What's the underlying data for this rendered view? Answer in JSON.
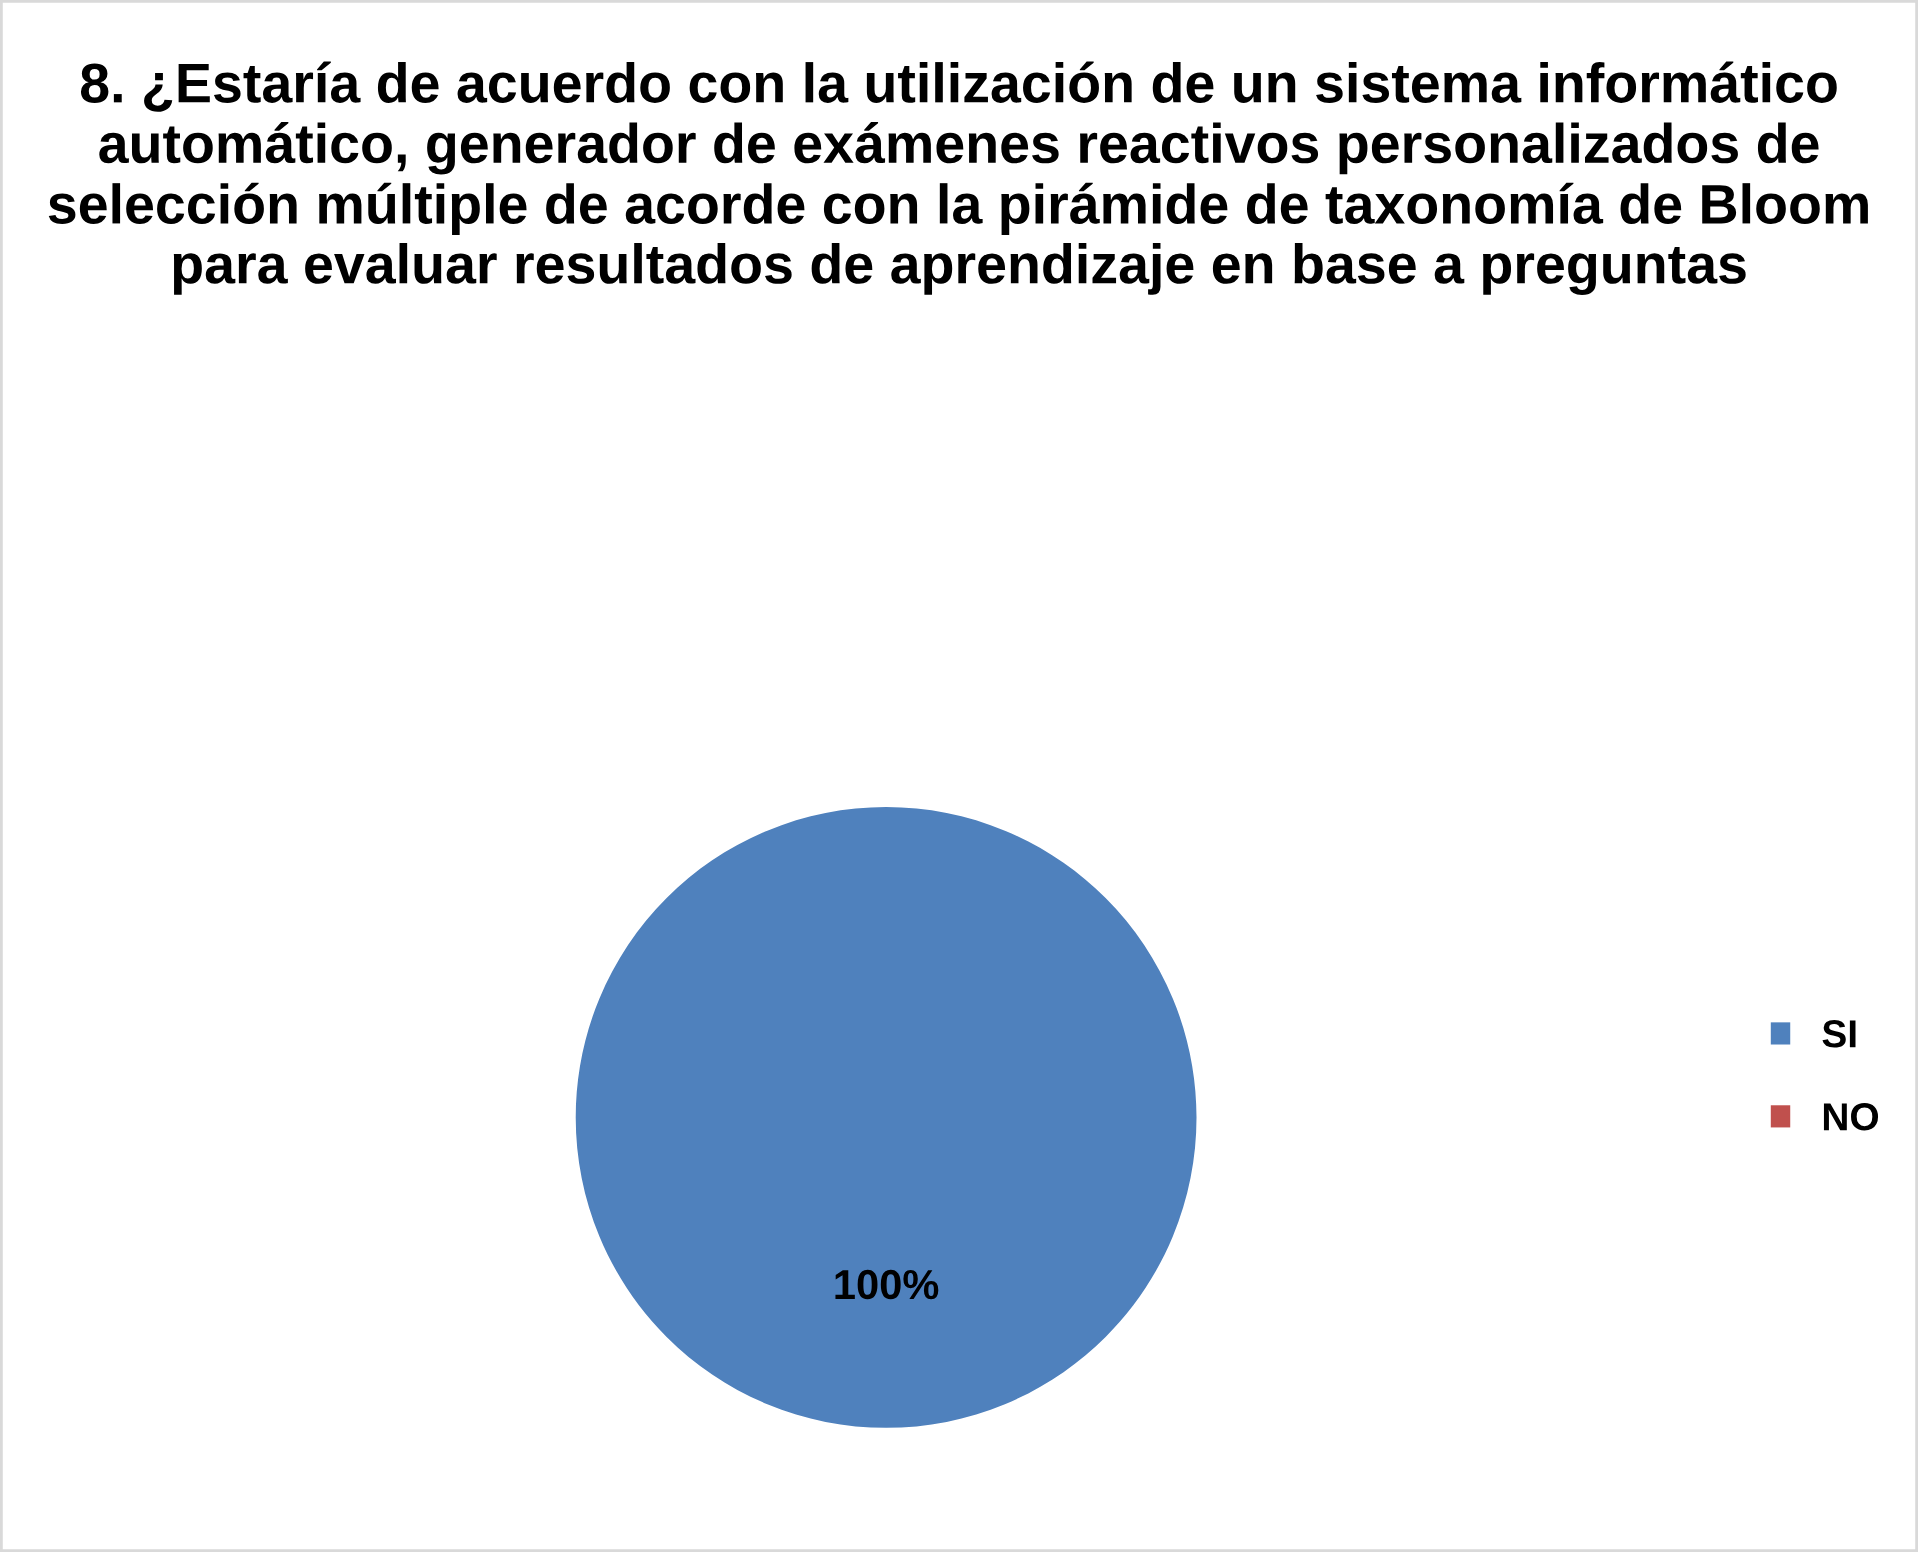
{
  "chart_data": {
    "type": "pie",
    "title": "8. ¿Estaría de acuerdo con la utilización de un sistema informático automático, generador de exámenes reactivos personalizados de selección múltiple de acorde con la pirámide de taxonomía de Bloom para evaluar resultados de aprendizaje en base a preguntas",
    "categories": [
      "SI",
      "NO"
    ],
    "values": [
      100,
      0
    ],
    "colors": [
      "#4f81bd",
      "#c0504d"
    ],
    "value_labels": [
      "100%",
      null
    ],
    "legend": "right"
  }
}
